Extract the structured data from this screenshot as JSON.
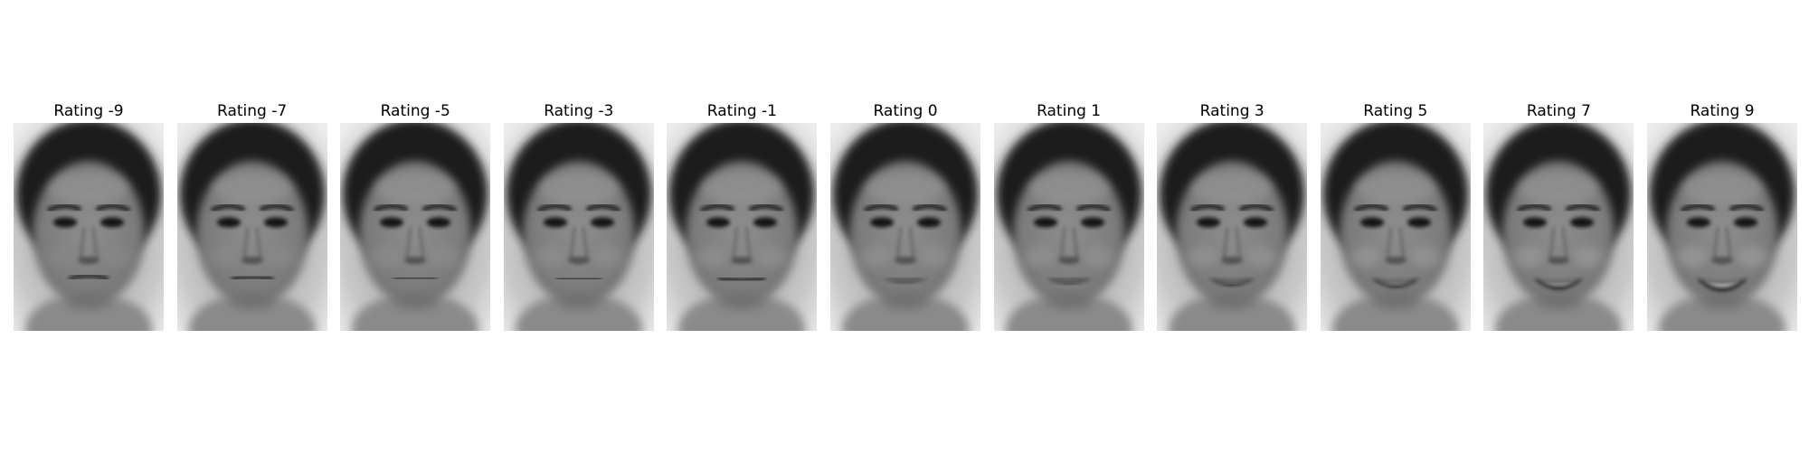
{
  "panels": [
    {
      "title": "Rating -9",
      "rating": -9
    },
    {
      "title": "Rating -7",
      "rating": -7
    },
    {
      "title": "Rating -5",
      "rating": -5
    },
    {
      "title": "Rating -3",
      "rating": -3
    },
    {
      "title": "Rating -1",
      "rating": -1
    },
    {
      "title": "Rating 0",
      "rating": 0
    },
    {
      "title": "Rating 1",
      "rating": 1
    },
    {
      "title": "Rating 3",
      "rating": 3
    },
    {
      "title": "Rating 5",
      "rating": 5
    },
    {
      "title": "Rating 7",
      "rating": 7
    },
    {
      "title": "Rating 9",
      "rating": 9
    }
  ]
}
